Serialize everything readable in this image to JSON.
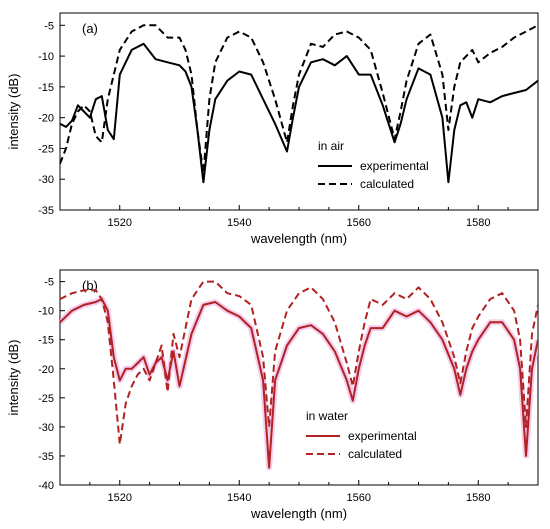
{
  "chart_data": [
    {
      "type": "line",
      "panel_label": "(a)",
      "xlabel": "wavelength (nm)",
      "ylabel": "intensity (dB)",
      "xlim": [
        1510,
        1590
      ],
      "ylim": [
        -35,
        -3
      ],
      "xticks": [
        1520,
        1540,
        1560,
        1580
      ],
      "yticks": [
        -35,
        -30,
        -25,
        -20,
        -15,
        -10,
        -5
      ],
      "legend_title": "in air",
      "legend_position": "lower-middle",
      "series": [
        {
          "name": "experimental",
          "color": "#000000",
          "dash": "solid",
          "x": [
            1510,
            1511,
            1512,
            1513,
            1514,
            1515,
            1516,
            1517,
            1518,
            1519,
            1520,
            1522,
            1524,
            1526,
            1528,
            1530,
            1531,
            1532,
            1533,
            1534,
            1535,
            1536,
            1538,
            1540,
            1542,
            1544,
            1546,
            1548,
            1549,
            1550,
            1552,
            1554,
            1556,
            1558,
            1560,
            1562,
            1564,
            1566,
            1567,
            1568,
            1570,
            1572,
            1574,
            1575,
            1576,
            1577,
            1578,
            1579,
            1580,
            1582,
            1584,
            1586,
            1588,
            1590
          ],
          "y": [
            -21,
            -21.5,
            -20.5,
            -18,
            -19,
            -20,
            -17,
            -16.5,
            -22,
            -23.5,
            -13,
            -9,
            -8,
            -10.5,
            -11,
            -11.5,
            -12.5,
            -15,
            -22,
            -30.5,
            -22,
            -17,
            -14,
            -12.5,
            -13,
            -17,
            -21,
            -25.5,
            -20,
            -15,
            -11,
            -10.5,
            -11.5,
            -10,
            -13,
            -13,
            -18,
            -24,
            -21,
            -17,
            -12,
            -13,
            -20,
            -30.5,
            -22,
            -18,
            -17.5,
            -20,
            -17,
            -17.5,
            -16.5,
            -16,
            -15.5,
            -14
          ]
        },
        {
          "name": "calculated",
          "color": "#000000",
          "dash": "dashed",
          "x": [
            1510,
            1511,
            1512,
            1513,
            1514,
            1515,
            1516,
            1517,
            1518,
            1519,
            1520,
            1522,
            1524,
            1526,
            1528,
            1530,
            1531,
            1532,
            1533,
            1534,
            1535,
            1536,
            1538,
            1540,
            1542,
            1544,
            1546,
            1548,
            1549,
            1550,
            1552,
            1554,
            1556,
            1558,
            1560,
            1562,
            1564,
            1566,
            1567,
            1568,
            1570,
            1572,
            1574,
            1575,
            1576,
            1577,
            1578,
            1579,
            1580,
            1582,
            1584,
            1586,
            1588,
            1590
          ],
          "y": [
            -27.5,
            -25,
            -21,
            -19,
            -18,
            -19,
            -23,
            -24,
            -17,
            -13,
            -9,
            -6,
            -5,
            -5,
            -7,
            -7,
            -9,
            -13,
            -22,
            -29,
            -17,
            -11,
            -7,
            -6,
            -7,
            -11,
            -17,
            -24,
            -18,
            -13,
            -8,
            -8.5,
            -6.5,
            -6,
            -7,
            -9,
            -16,
            -23.5,
            -19,
            -14,
            -8,
            -6.5,
            -13,
            -22,
            -15,
            -11,
            -10,
            -9,
            -11,
            -9.5,
            -8.5,
            -7,
            -6,
            -5
          ]
        }
      ]
    },
    {
      "type": "line",
      "panel_label": "(b)",
      "xlabel": "wavelength (nm)",
      "ylabel": "intensity (dB)",
      "xlim": [
        1510,
        1590
      ],
      "ylim": [
        -40,
        -3
      ],
      "xticks": [
        1520,
        1540,
        1560,
        1580
      ],
      "yticks": [
        -40,
        -35,
        -30,
        -25,
        -20,
        -15,
        -10,
        -5
      ],
      "legend_title": "in water",
      "legend_position": "lower-middle",
      "series": [
        {
          "name": "experimental",
          "color": "#b22222",
          "dash": "solid",
          "x": [
            1510,
            1512,
            1514,
            1516,
            1517,
            1518,
            1519,
            1520,
            1521,
            1522,
            1523,
            1524,
            1525,
            1526,
            1527,
            1528,
            1529,
            1530,
            1532,
            1534,
            1536,
            1538,
            1540,
            1542,
            1544,
            1545,
            1546,
            1548,
            1550,
            1552,
            1554,
            1556,
            1558,
            1559,
            1560,
            1561,
            1562,
            1564,
            1566,
            1568,
            1570,
            1572,
            1574,
            1576,
            1577,
            1578,
            1579,
            1580,
            1582,
            1584,
            1586,
            1587,
            1588,
            1589,
            1590
          ],
          "y": [
            -12,
            -10,
            -9,
            -8.5,
            -8,
            -10,
            -18,
            -22,
            -20,
            -20,
            -19,
            -18,
            -21,
            -19,
            -18,
            -22,
            -17,
            -23,
            -14,
            -9,
            -8.5,
            -10,
            -11,
            -13,
            -22,
            -37,
            -22,
            -16,
            -13,
            -12.5,
            -14,
            -17,
            -22,
            -25.5,
            -20,
            -16,
            -13,
            -13,
            -10,
            -11,
            -10,
            -12,
            -15,
            -20,
            -24.5,
            -20,
            -17,
            -15,
            -12,
            -12,
            -15,
            -20,
            -35,
            -20,
            -15
          ]
        },
        {
          "name": "calculated",
          "color": "#b22222",
          "dash": "dashed",
          "x": [
            1510,
            1512,
            1514,
            1516,
            1517,
            1518,
            1519,
            1520,
            1521,
            1522,
            1523,
            1524,
            1525,
            1526,
            1527,
            1528,
            1529,
            1530,
            1532,
            1534,
            1536,
            1538,
            1540,
            1542,
            1544,
            1545,
            1546,
            1548,
            1550,
            1552,
            1554,
            1556,
            1558,
            1559,
            1560,
            1561,
            1562,
            1564,
            1566,
            1568,
            1570,
            1572,
            1574,
            1576,
            1577,
            1578,
            1579,
            1580,
            1582,
            1584,
            1586,
            1587,
            1588,
            1589,
            1590
          ],
          "y": [
            -8,
            -7,
            -6.5,
            -6.5,
            -8,
            -12,
            -22,
            -33,
            -26,
            -23,
            -21,
            -20,
            -22,
            -19,
            -16,
            -24,
            -14,
            -18,
            -8,
            -5,
            -5,
            -7,
            -7.5,
            -9,
            -18,
            -30,
            -17,
            -10,
            -7,
            -6,
            -8,
            -12,
            -19,
            -23,
            -17,
            -12,
            -8,
            -9,
            -7,
            -8,
            -6,
            -8,
            -12,
            -18,
            -22.5,
            -17,
            -13,
            -11,
            -8,
            -7,
            -10,
            -15,
            -30,
            -14,
            -9
          ]
        }
      ]
    }
  ]
}
